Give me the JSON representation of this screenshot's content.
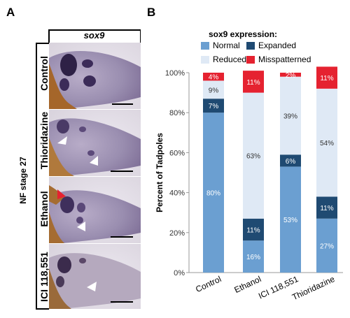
{
  "panel_a": {
    "letter": "A",
    "header": "sox9",
    "stage_label": "NF stage 27",
    "rows": [
      {
        "label": "Control"
      },
      {
        "label": "Thioridazine"
      },
      {
        "label": "Ethanol"
      },
      {
        "label": "ICI 118,551"
      }
    ]
  },
  "panel_b": {
    "letter": "B"
  },
  "colors": {
    "normal": "#6b9fd1",
    "expanded": "#1f4a72",
    "reduced": "#dfe9f5",
    "mispatterned": "#e52230",
    "white_arrow": "#ffffff",
    "red_arrow": "#e52230"
  },
  "chart_data": {
    "type": "bar",
    "stacked": true,
    "legend_title": "sox9 expression:",
    "legend_position": "top",
    "categories": [
      "Control",
      "Ethanol",
      "ICI 118,551",
      "Thioridazine"
    ],
    "ylabel": "Percent of Tadpoles",
    "ylim": [
      0,
      100
    ],
    "yticks": [
      "0%",
      "20%",
      "40%",
      "60%",
      "80%",
      "100%"
    ],
    "series": [
      {
        "name": "Normal",
        "color": "#6b9fd1",
        "values": [
          80,
          16,
          53,
          27
        ],
        "labels": [
          "80%",
          "16%",
          "53%",
          "27%"
        ]
      },
      {
        "name": "Expanded",
        "color": "#1f4a72",
        "values": [
          7,
          11,
          6,
          11
        ],
        "labels": [
          "7%",
          "11%",
          "6%",
          "11%"
        ]
      },
      {
        "name": "Reduced",
        "color": "#dfe9f5",
        "values": [
          9,
          63,
          39,
          54
        ],
        "labels": [
          "9%",
          "63%",
          "39%",
          "54%"
        ]
      },
      {
        "name": "Misspatterned",
        "color": "#e52230",
        "values": [
          4,
          11,
          2,
          11
        ],
        "labels": [
          "4%",
          "11%",
          "2%",
          "11%"
        ]
      }
    ]
  }
}
